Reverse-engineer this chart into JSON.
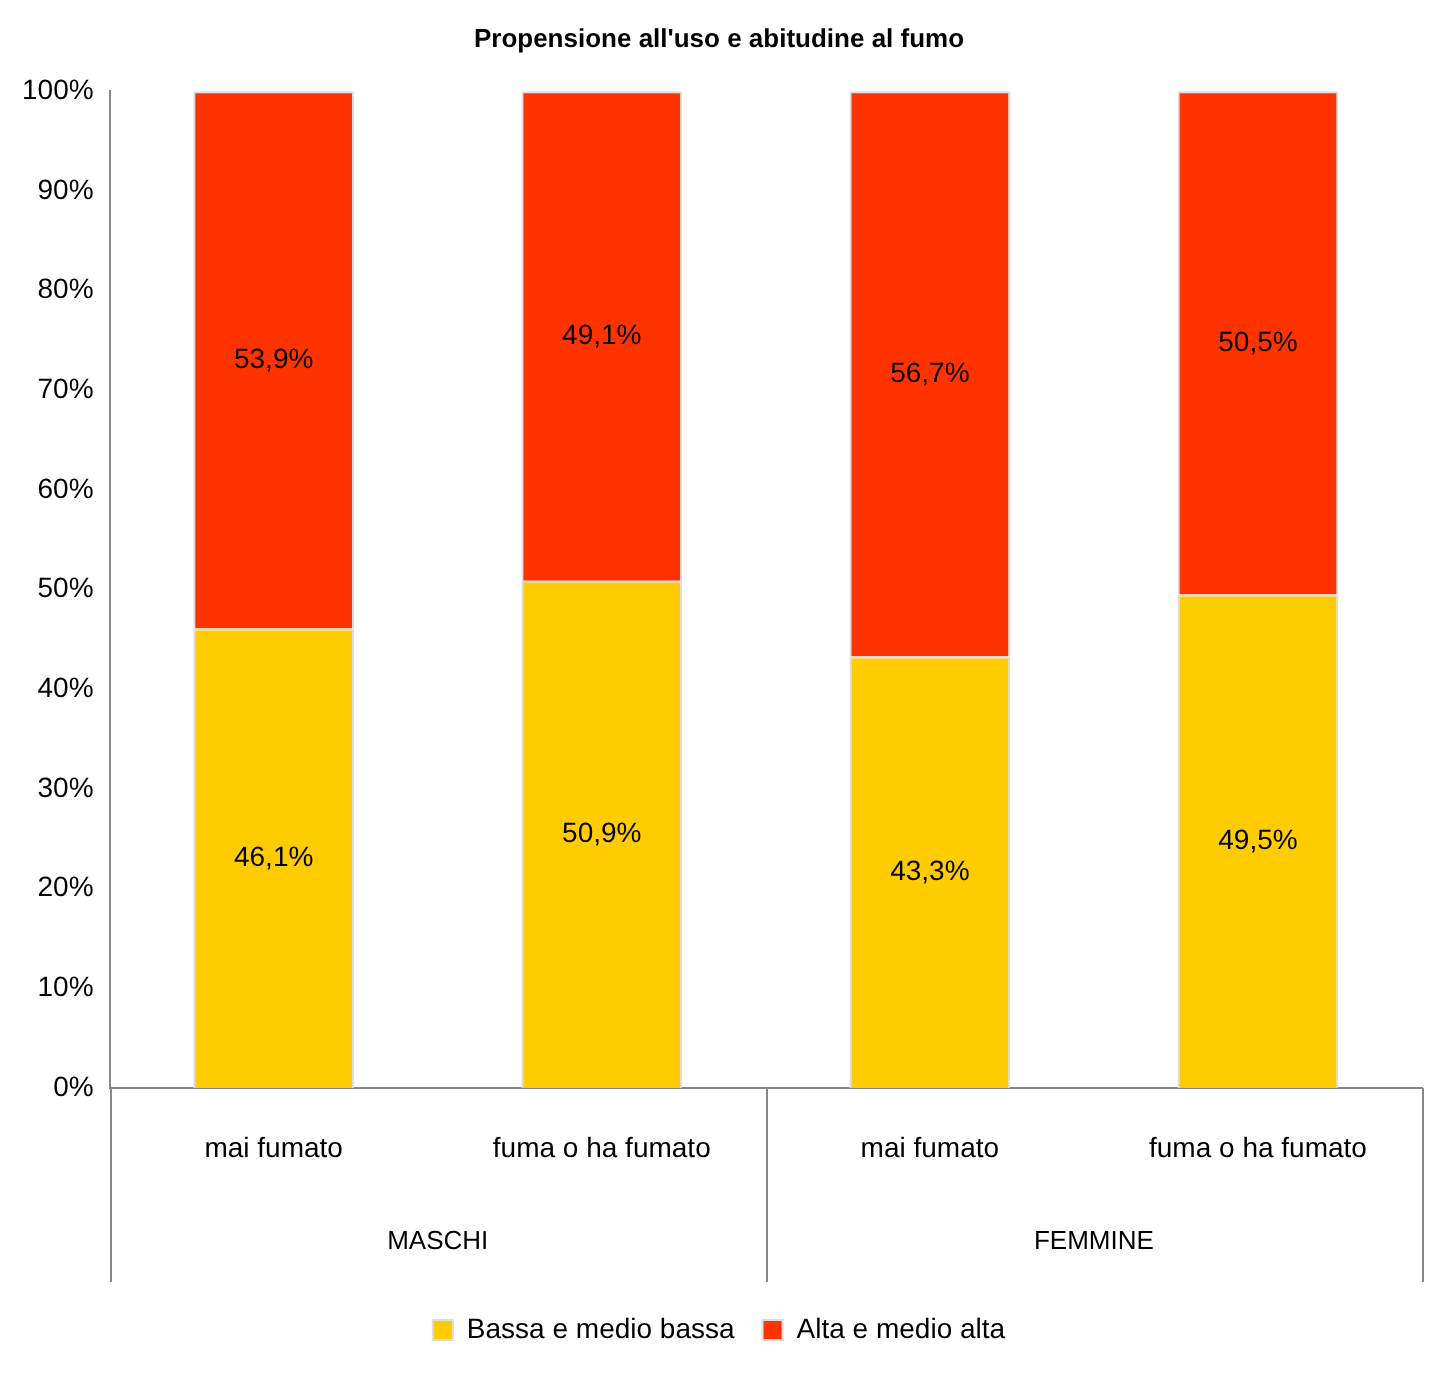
{
  "chart_data": {
    "type": "bar",
    "title": "Propensione all'uso e abitudine al fumo",
    "categories": [
      "mai fumato",
      "fuma o ha fumato",
      "mai fumato",
      "fuma o ha fumato"
    ],
    "stacked": true,
    "series": [
      {
        "name": "Bassa e medio bassa",
        "color": "#ffcc00",
        "values": [
          46.1,
          50.9,
          43.3,
          49.5
        ],
        "value_labels": [
          "46,1%",
          "50,9%",
          "43,3%",
          "49,5%"
        ]
      },
      {
        "name": "Alta e medio alta",
        "color": "#ff3300",
        "values": [
          53.9,
          49.1,
          56.7,
          50.5
        ],
        "value_labels": [
          "53,9%",
          "49,1%",
          "56,7%",
          "50,5%"
        ]
      }
    ],
    "ylim": [
      0,
      100
    ],
    "yticks": [
      {
        "value": 0,
        "label": "0%"
      },
      {
        "value": 10,
        "label": "10%"
      },
      {
        "value": 20,
        "label": "20%"
      },
      {
        "value": 30,
        "label": "30%"
      },
      {
        "value": 40,
        "label": "40%"
      },
      {
        "value": 50,
        "label": "50%"
      },
      {
        "value": 60,
        "label": "60%"
      },
      {
        "value": 70,
        "label": "70%"
      },
      {
        "value": 80,
        "label": "80%"
      },
      {
        "value": 90,
        "label": "90%"
      },
      {
        "value": 100,
        "label": "100%"
      }
    ],
    "annotations": [
      "MASCHI",
      "FEMMINE"
    ],
    "legend": "bottom"
  }
}
